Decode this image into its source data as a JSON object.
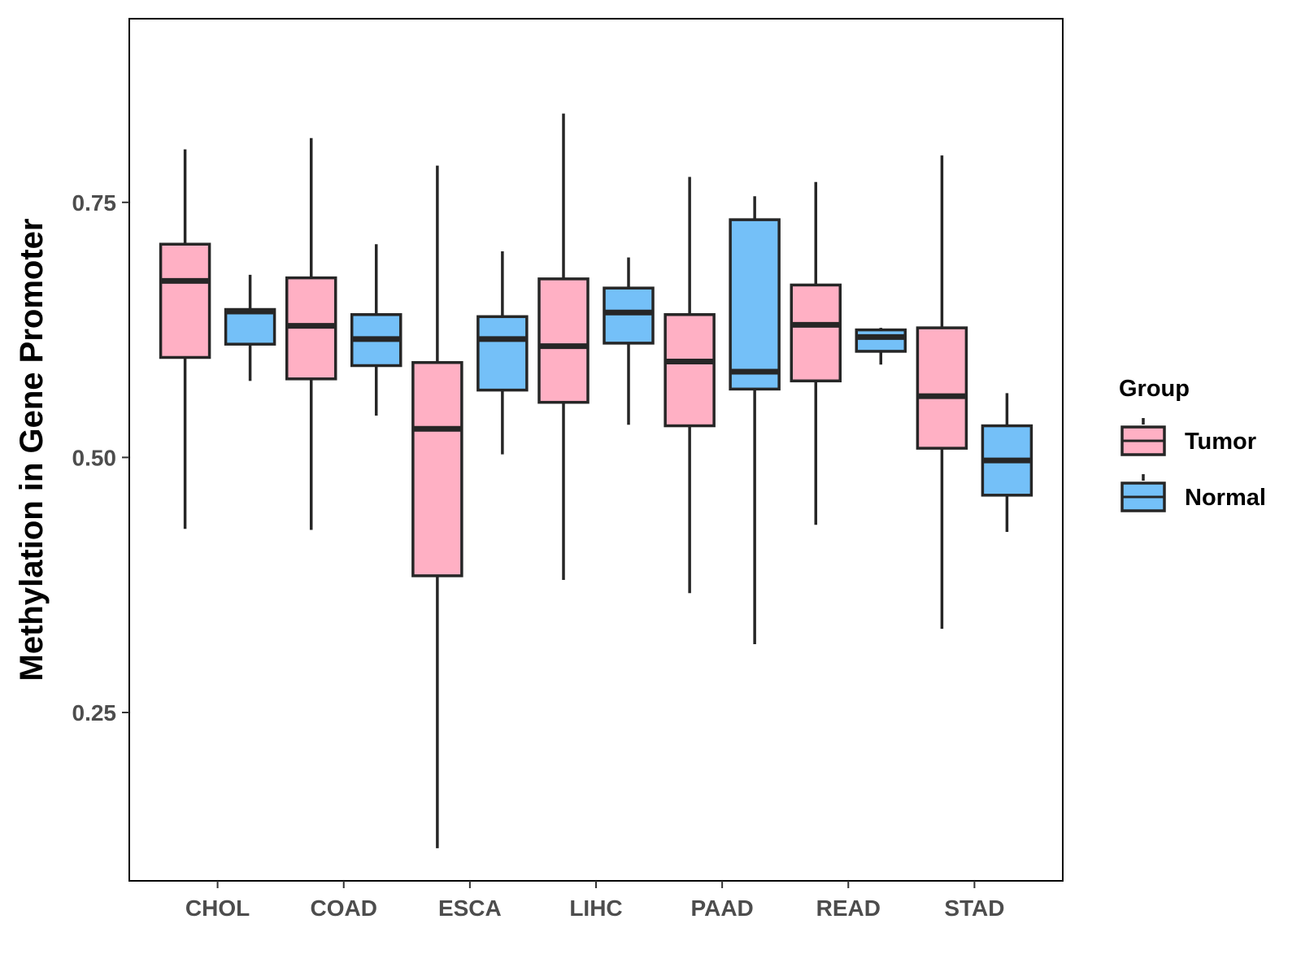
{
  "chart_data": {
    "type": "boxplot",
    "title": "",
    "xlabel": "",
    "ylabel": "Methylation in Gene Promoter",
    "ylim": [
      0.085,
      0.93
    ],
    "yticks": [
      {
        "value": 0.25,
        "label": "0.25"
      },
      {
        "value": 0.5,
        "label": "0.50"
      },
      {
        "value": 0.75,
        "label": "0.75"
      }
    ],
    "categories": [
      "CHOL",
      "COAD",
      "ESCA",
      "LIHC",
      "PAAD",
      "READ",
      "STAD"
    ],
    "legend": {
      "title": "Group",
      "position": "right",
      "entries": [
        {
          "name": "Tumor",
          "color": "#ffb0c4"
        },
        {
          "name": "Normal",
          "color": "#74c0f8"
        }
      ]
    },
    "series": [
      {
        "name": "Tumor",
        "color": "#ffb0c4",
        "boxes": [
          {
            "min": 0.43,
            "q1": 0.598,
            "median": 0.673,
            "q3": 0.709,
            "max": 0.802
          },
          {
            "min": 0.429,
            "q1": 0.577,
            "median": 0.629,
            "q3": 0.676,
            "max": 0.813
          },
          {
            "min": 0.117,
            "q1": 0.384,
            "median": 0.528,
            "q3": 0.593,
            "max": 0.786
          },
          {
            "min": 0.38,
            "q1": 0.554,
            "median": 0.609,
            "q3": 0.675,
            "max": 0.837
          },
          {
            "min": 0.367,
            "q1": 0.531,
            "median": 0.594,
            "q3": 0.64,
            "max": 0.775
          },
          {
            "min": 0.434,
            "q1": 0.575,
            "median": 0.63,
            "q3": 0.669,
            "max": 0.77
          },
          {
            "min": 0.332,
            "q1": 0.509,
            "median": 0.56,
            "q3": 0.627,
            "max": 0.796
          }
        ]
      },
      {
        "name": "Normal",
        "color": "#74c0f8",
        "boxes": [
          {
            "min": 0.575,
            "q1": 0.611,
            "median": 0.643,
            "q3": 0.645,
            "max": 0.679
          },
          {
            "min": 0.541,
            "q1": 0.59,
            "median": 0.616,
            "q3": 0.64,
            "max": 0.709
          },
          {
            "min": 0.503,
            "q1": 0.566,
            "median": 0.616,
            "q3": 0.638,
            "max": 0.702
          },
          {
            "min": 0.532,
            "q1": 0.612,
            "median": 0.642,
            "q3": 0.666,
            "max": 0.696
          },
          {
            "min": 0.317,
            "q1": 0.567,
            "median": 0.584,
            "q3": 0.733,
            "max": 0.756
          },
          {
            "min": 0.591,
            "q1": 0.604,
            "median": 0.618,
            "q3": 0.625,
            "max": 0.627
          },
          {
            "min": 0.427,
            "q1": 0.463,
            "median": 0.497,
            "q3": 0.531,
            "max": 0.563
          }
        ]
      }
    ]
  }
}
